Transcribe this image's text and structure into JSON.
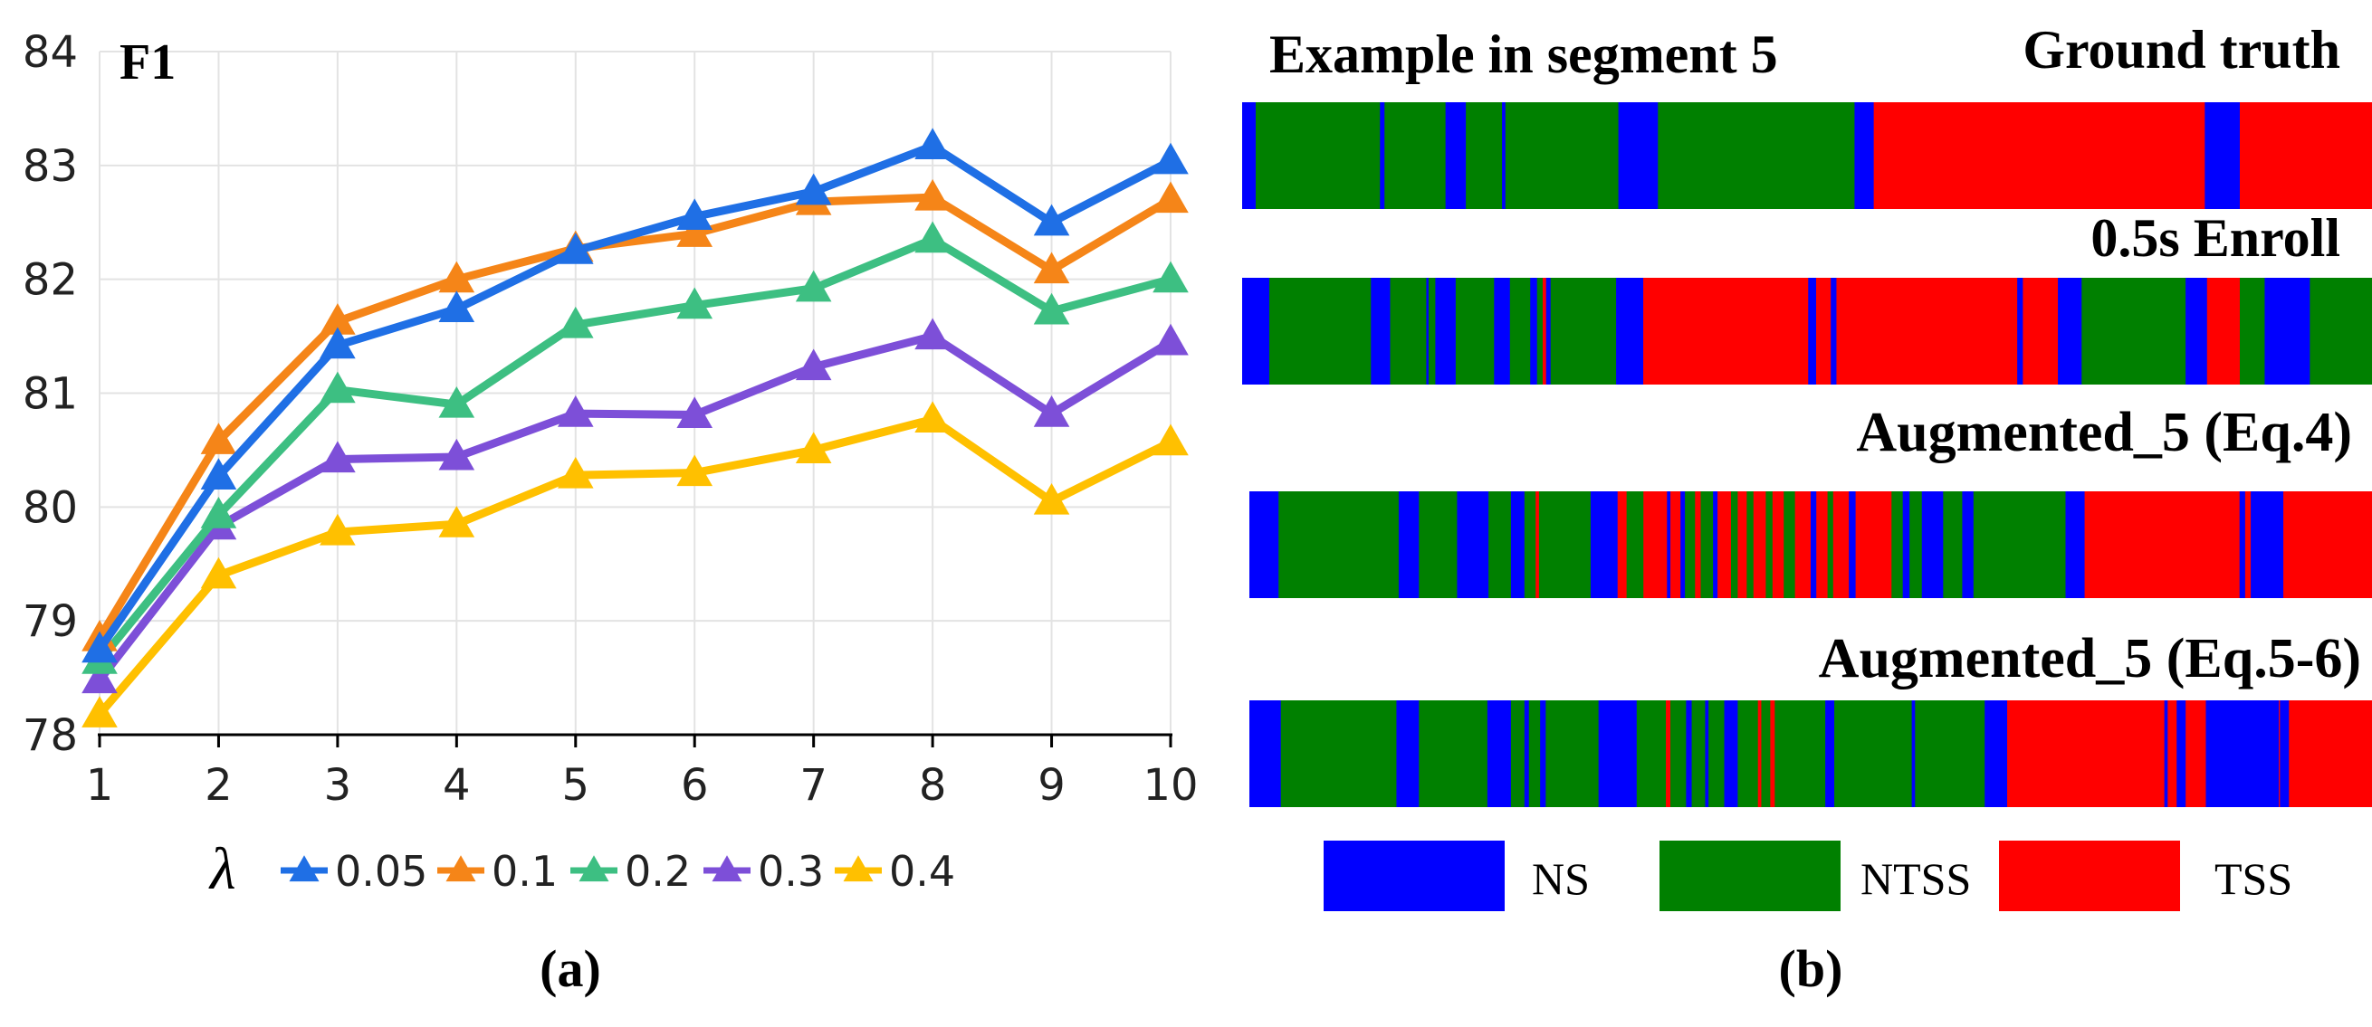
{
  "panel_labels": {
    "a": "(a)",
    "b": "(b)"
  },
  "chart_data": [
    {
      "type": "line",
      "title": "F1",
      "xlabel": "",
      "ylabel": "",
      "x": [
        1,
        2,
        3,
        4,
        5,
        6,
        7,
        8,
        9,
        10
      ],
      "x_ticks": [
        "1",
        "2",
        "3",
        "4",
        "5",
        "6",
        "7",
        "8",
        "9",
        "10"
      ],
      "y_ticks": [
        "78",
        "79",
        "80",
        "81",
        "82",
        "83",
        "84"
      ],
      "ylim": [
        78,
        84
      ],
      "xlim": [
        1,
        10
      ],
      "grid": true,
      "legend_title": "λ",
      "legend_position": "bottom",
      "marker": "triangle",
      "series": [
        {
          "name": "0.05",
          "color": "#1f6fe5",
          "values": [
            78.75,
            80.27,
            81.42,
            81.74,
            82.25,
            82.55,
            82.77,
            83.17,
            82.5,
            83.04
          ]
        },
        {
          "name": "0.1",
          "color": "#f58518",
          "values": [
            78.85,
            80.58,
            81.63,
            82.0,
            82.27,
            82.4,
            82.68,
            82.72,
            82.08,
            82.7
          ]
        },
        {
          "name": "0.2",
          "color": "#3dbf82",
          "values": [
            78.65,
            79.93,
            81.03,
            80.9,
            81.6,
            81.77,
            81.92,
            82.35,
            81.72,
            82.0
          ]
        },
        {
          "name": "0.3",
          "color": "#7d4fd8",
          "values": [
            78.48,
            79.83,
            80.42,
            80.44,
            80.82,
            80.81,
            81.23,
            81.5,
            80.82,
            81.45
          ]
        },
        {
          "name": "0.4",
          "color": "#ffc000",
          "values": [
            78.18,
            79.4,
            79.78,
            79.85,
            80.28,
            80.3,
            80.5,
            80.77,
            80.05,
            80.57
          ]
        }
      ]
    },
    {
      "type": "segment-timeline",
      "title": "Example in segment 5",
      "categories": [
        {
          "name": "NS",
          "color": "#0000ff"
        },
        {
          "name": "NTSS",
          "color": "#008000"
        },
        {
          "name": "TSS",
          "color": "#ff0000"
        }
      ],
      "rows": [
        {
          "label": "Ground truth",
          "segments": [
            [
              "NS",
              0,
              1.2
            ],
            [
              "NTSS",
              1.2,
              12.2
            ],
            [
              "NS",
              12.2,
              12.6
            ],
            [
              "NTSS",
              12.6,
              18
            ],
            [
              "NS",
              18,
              19.8
            ],
            [
              "NTSS",
              19.8,
              23
            ],
            [
              "NS",
              23,
              23.3
            ],
            [
              "NTSS",
              23.3,
              33.3
            ],
            [
              "NS",
              33.3,
              36.8
            ],
            [
              "NTSS",
              36.8,
              54.2
            ],
            [
              "NS",
              54.2,
              55.9
            ],
            [
              "TSS",
              55.9,
              85.2
            ],
            [
              "NS",
              85.2,
              88.3
            ],
            [
              "TSS",
              88.3,
              100
            ]
          ]
        },
        {
          "label": "0.5s Enroll",
          "segments": [
            [
              "NS",
              0,
              2.4
            ],
            [
              "NTSS",
              2.4,
              11.4
            ],
            [
              "NS",
              11.4,
              13.1
            ],
            [
              "NTSS",
              13.1,
              16.3
            ],
            [
              "NS",
              16.3,
              16.5
            ],
            [
              "NTSS",
              16.5,
              17.1
            ],
            [
              "NS",
              17.1,
              18.9
            ],
            [
              "NTSS",
              18.9,
              22.3
            ],
            [
              "NS",
              22.3,
              23.7
            ],
            [
              "NTSS",
              23.7,
              25.5
            ],
            [
              "NS",
              25.5,
              26.1
            ],
            [
              "NTSS",
              26.1,
              26.6
            ],
            [
              "TSS",
              26.6,
              26.9
            ],
            [
              "NTSS",
              26.9,
              26.9
            ],
            [
              "NS",
              26.9,
              27.3
            ],
            [
              "NTSS",
              27.3,
              33.1
            ],
            [
              "NS",
              33.1,
              35.5
            ],
            [
              "TSS",
              35.5,
              50.1
            ],
            [
              "NS",
              50.1,
              50.8
            ],
            [
              "TSS",
              50.8,
              52.1
            ],
            [
              "NS",
              52.1,
              52.6
            ],
            [
              "TSS",
              52.6,
              68.6
            ],
            [
              "NS",
              68.6,
              69.1
            ],
            [
              "TSS",
              69.1,
              72.2
            ],
            [
              "NS",
              72.2,
              74.3
            ],
            [
              "NTSS",
              74.3,
              83.5
            ],
            [
              "NS",
              83.5,
              85.4
            ],
            [
              "TSS",
              85.4,
              88.3
            ],
            [
              "NTSS",
              88.3,
              90.5
            ],
            [
              "NS",
              90.5,
              94.5
            ],
            [
              "NTSS",
              94.5,
              100
            ]
          ]
        },
        {
          "label": "Augmented_5 (Eq.4)",
          "segments": [
            [
              "NS",
              0,
              2.6
            ],
            [
              "NTSS",
              2.6,
              13.3
            ],
            [
              "NS",
              13.3,
              15.1
            ],
            [
              "NTSS",
              15.1,
              18.5
            ],
            [
              "NS",
              18.5,
              21.3
            ],
            [
              "NTSS",
              21.3,
              23.3
            ],
            [
              "NS",
              23.3,
              24.5
            ],
            [
              "NTSS",
              24.5,
              25.5
            ],
            [
              "TSS",
              25.5,
              25.8
            ],
            [
              "NTSS",
              25.8,
              30.4
            ],
            [
              "NS",
              30.4,
              32.8
            ],
            [
              "TSS",
              32.8,
              33.6
            ],
            [
              "NTSS",
              33.6,
              35.1
            ],
            [
              "TSS",
              35.1,
              37.2
            ],
            [
              "NS",
              37.2,
              37.5
            ],
            [
              "TSS",
              37.5,
              38.4
            ],
            [
              "NS",
              38.4,
              38.8
            ],
            [
              "NTSS",
              38.8,
              39.7
            ],
            [
              "TSS",
              39.7,
              40.2
            ],
            [
              "NTSS",
              40.2,
              41.3
            ],
            [
              "NS",
              41.3,
              41.7
            ],
            [
              "TSS",
              41.7,
              42.9
            ],
            [
              "NTSS",
              42.9,
              43.5
            ],
            [
              "TSS",
              43.5,
              44.3
            ],
            [
              "NTSS",
              44.3,
              44.9
            ],
            [
              "TSS",
              44.9,
              46.0
            ],
            [
              "NTSS",
              46.0,
              46.6
            ],
            [
              "TSS",
              46.6,
              47.6
            ],
            [
              "NTSS",
              47.6,
              48.6
            ],
            [
              "TSS",
              48.6,
              50.0
            ],
            [
              "NS",
              50.0,
              50.5
            ],
            [
              "TSS",
              50.5,
              51.5
            ],
            [
              "NTSS",
              51.5,
              52.0
            ],
            [
              "TSS",
              52.0,
              53.4
            ],
            [
              "NS",
              53.4,
              54.0
            ],
            [
              "TSS",
              54.0,
              57.2
            ],
            [
              "NTSS",
              57.2,
              58.2
            ],
            [
              "NS",
              58.2,
              58.8
            ],
            [
              "NTSS",
              58.8,
              59.9
            ],
            [
              "NS",
              59.9,
              61.8
            ],
            [
              "NTSS",
              61.8,
              63.5
            ],
            [
              "NS",
              63.5,
              64.5
            ],
            [
              "NTSS",
              64.5,
              72.7
            ],
            [
              "NS",
              72.7,
              74.4
            ],
            [
              "TSS",
              74.4,
              88.2
            ],
            [
              "NS",
              88.2,
              88.7
            ],
            [
              "TSS",
              88.7,
              89.2
            ],
            [
              "NS",
              89.2,
              92.1
            ],
            [
              "TSS",
              92.1,
              100
            ]
          ]
        },
        {
          "label": "Augmented_5 (Eq.5-6)",
          "segments": [
            [
              "NS",
              0,
              2.8
            ],
            [
              "NTSS",
              2.8,
              13.1
            ],
            [
              "NS",
              13.1,
              15.1
            ],
            [
              "NTSS",
              15.1,
              21.2
            ],
            [
              "NS",
              21.2,
              23.3
            ],
            [
              "NTSS",
              23.3,
              24.5
            ],
            [
              "NS",
              24.5,
              24.9
            ],
            [
              "NTSS",
              24.9,
              25.9
            ],
            [
              "NS",
              25.9,
              26.4
            ],
            [
              "NTSS",
              26.4,
              31.1
            ],
            [
              "NS",
              31.1,
              34.5
            ],
            [
              "NTSS",
              34.5,
              37.1
            ],
            [
              "TSS",
              37.1,
              37.5
            ],
            [
              "NTSS",
              37.5,
              38.9
            ],
            [
              "NS",
              38.9,
              39.4
            ],
            [
              "NTSS",
              39.4,
              40.6
            ],
            [
              "NS",
              40.6,
              40.9
            ],
            [
              "NTSS",
              40.9,
              42.3
            ],
            [
              "NS",
              42.3,
              43.5
            ],
            [
              "NTSS",
              43.5,
              45.3
            ],
            [
              "TSS",
              45.3,
              45.6
            ],
            [
              "NTSS",
              45.6,
              46.4
            ],
            [
              "TSS",
              46.4,
              46.8
            ],
            [
              "NTSS",
              46.8,
              51.3
            ],
            [
              "NS",
              51.3,
              52.1
            ],
            [
              "NTSS",
              52.1,
              59.0
            ],
            [
              "NS",
              59.0,
              59.3
            ],
            [
              "NTSS",
              59.3,
              65.5
            ],
            [
              "NS",
              65.5,
              67.5
            ],
            [
              "TSS",
              67.5,
              81.5
            ],
            [
              "NS",
              81.5,
              81.8
            ],
            [
              "TSS",
              81.8,
              82.6
            ],
            [
              "NS",
              82.6,
              83.4
            ],
            [
              "TSS",
              83.4,
              85.2
            ],
            [
              "NS",
              85.2,
              91.7
            ],
            [
              "TSS",
              91.7,
              91.8
            ],
            [
              "NS",
              91.8,
              92.6
            ],
            [
              "TSS",
              92.6,
              100
            ]
          ]
        }
      ]
    }
  ]
}
